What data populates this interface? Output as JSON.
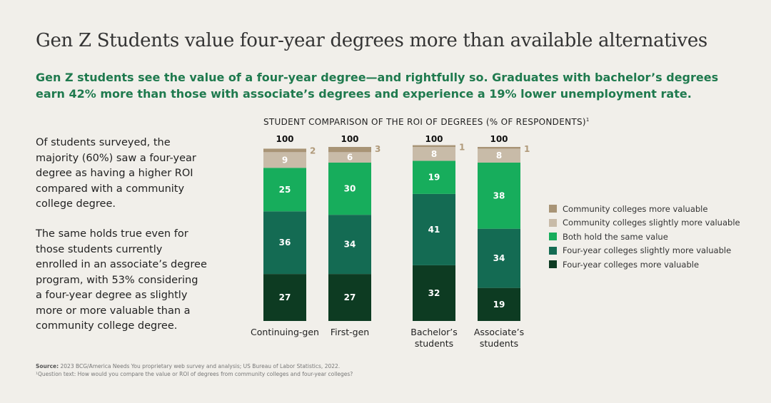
{
  "title": "Gen Z Students value four-year degrees more than available alternatives",
  "subtitle": "Gen Z students see the value of a four-year degree—and rightfully so. Graduates with bachelor’s degrees earn 42% more than those with associate’s degrees and experience a 19% lower unemployment rate.",
  "body": {
    "para1": "Of students surveyed, the majority (60%) saw a four-year degree as having a higher ROI compared with a community college degree.",
    "para2": "The same holds true even for those students currently enrolled in an associate’s degree program, with 53% considering a four-year degree as slightly more or more valuable than a community college degree."
  },
  "source": {
    "label": "Source:",
    "text": "2023 BCG/America Needs You proprietary web survey and analysis; US Bureau of Labor Statistics, 2022.",
    "footnote": "¹Question text: How would you compare the value or ROI of degrees from community colleges and four-year colleges?"
  },
  "chart_data": {
    "type": "bar",
    "stacked": true,
    "title": "STUDENT COMPARISON OF THE ROI OF DEGREES (% OF RESPONDENTS)",
    "title_sup": "1",
    "categories": [
      "Continuing-gen",
      "First-gen",
      "Bachelor’s students",
      "Associate’s students"
    ],
    "category_lines": [
      [
        "Continuing-gen"
      ],
      [
        "First-gen"
      ],
      [
        "Bachelor’s",
        "students"
      ],
      [
        "Associate’s",
        "students"
      ]
    ],
    "totals": [
      100,
      100,
      100,
      100
    ],
    "series": [
      {
        "name": "Four-year colleges more valuable",
        "color": "#0d3b22",
        "values": [
          27,
          27,
          32,
          19
        ]
      },
      {
        "name": "Four-year colleges slightly more valuable",
        "color": "#146b53",
        "values": [
          36,
          34,
          41,
          34
        ]
      },
      {
        "name": "Both hold the same value",
        "color": "#17ad5c",
        "values": [
          25,
          30,
          19,
          38
        ]
      },
      {
        "name": "Community colleges slightly more valuable",
        "color": "#c8bba8",
        "values": [
          9,
          6,
          8,
          8
        ]
      },
      {
        "name": "Community colleges more valuable",
        "color": "#a89476",
        "values": [
          2,
          3,
          1,
          1
        ]
      }
    ],
    "legend_order": [
      4,
      3,
      2,
      1,
      0
    ],
    "ylim": [
      0,
      100
    ],
    "legend_position": "right"
  }
}
